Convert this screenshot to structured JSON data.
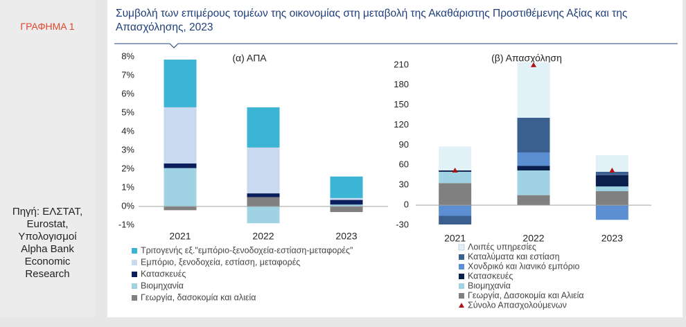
{
  "figure_label": "ΓΡΑΦΗΜΑ 1",
  "title": "Συμβολή των επιμέρους τομέων της οικονομίας στη μεταβολή της Ακαθάριστης Προστιθέμενης Αξίας και της Απασχόλησης, 2023",
  "source": [
    "Πηγή: ΕΛΣΤΑΤ,",
    "Eurostat,",
    "Υπολογισμοί",
    "Alpha Bank",
    "Economic",
    "Research"
  ],
  "chart_data": [
    {
      "type": "bar",
      "stacked": true,
      "title": "(α) ΑΠΑ",
      "categories": [
        "2021",
        "2022",
        "2023"
      ],
      "ylim": [
        -1,
        8
      ],
      "yticks": [
        {
          "value": -1,
          "label": "-1%"
        },
        {
          "value": 0,
          "label": "0%"
        },
        {
          "value": 1,
          "label": "1%"
        },
        {
          "value": 2,
          "label": "2%"
        },
        {
          "value": 3,
          "label": "3%"
        },
        {
          "value": 4,
          "label": "4%"
        },
        {
          "value": 5,
          "label": "5%"
        },
        {
          "value": 6,
          "label": "6%"
        },
        {
          "value": 7,
          "label": "7%"
        },
        {
          "value": 8,
          "label": "8%"
        }
      ],
      "series": [
        {
          "name": "Τριτογενής εξ.\"εμπόριο-ξενοδοχεία-εστίαση-μεταφορές\"",
          "color": "#3cb4d4",
          "values": [
            2.55,
            2.15,
            1.15
          ]
        },
        {
          "name": "Εμπόριο, ξενοδοχεία, εστίαση, μεταφορές",
          "color": "#c9d9ef",
          "values": [
            3.0,
            2.45,
            0.1
          ]
        },
        {
          "name": "Κατασκευές",
          "color": "#0b1f5c",
          "values": [
            0.25,
            0.2,
            0.25
          ]
        },
        {
          "name": "Βιομηχανία",
          "color": "#9fd3e3",
          "values": [
            2.05,
            -0.9,
            0.1
          ]
        },
        {
          "name": "Γεωργία, δασοκομία και αλιεία",
          "color": "#808080",
          "values": [
            -0.2,
            0.5,
            -0.3
          ]
        }
      ]
    },
    {
      "type": "bar",
      "stacked": true,
      "title": "(β) Απασχόληση",
      "categories": [
        "2021",
        "2022",
        "2023"
      ],
      "ylim": [
        -30,
        215
      ],
      "yticks": [
        -30,
        0,
        30,
        60,
        90,
        120,
        150,
        180,
        210
      ],
      "series": [
        {
          "name": "Λοιπές υπηρεσίες",
          "color": "#e2f1f8",
          "values": [
            36,
            83,
            25
          ]
        },
        {
          "name": "Καταλύματα και εστίαση",
          "color": "#3b5f8f",
          "values": [
            -13,
            52,
            5
          ]
        },
        {
          "name": "Χονδρικό και λιανικό εμπόριο",
          "color": "#5b8fd2",
          "values": [
            -16,
            20,
            -22
          ]
        },
        {
          "name": "Κατασκευές",
          "color": "#0b1f4c",
          "values": [
            2,
            7,
            17
          ]
        },
        {
          "name": "Βιομηχανία",
          "color": "#9fd3e3",
          "values": [
            17,
            37,
            7
          ]
        },
        {
          "name": "Γεωργία, Δασοκομία και Αλιεία",
          "color": "#808080",
          "values": [
            33,
            15,
            21
          ]
        },
        {
          "name": "Σύνολο Απασχολούμενων",
          "color": "#b01010",
          "type": "marker",
          "values": [
            52,
            210,
            52
          ]
        }
      ]
    }
  ]
}
